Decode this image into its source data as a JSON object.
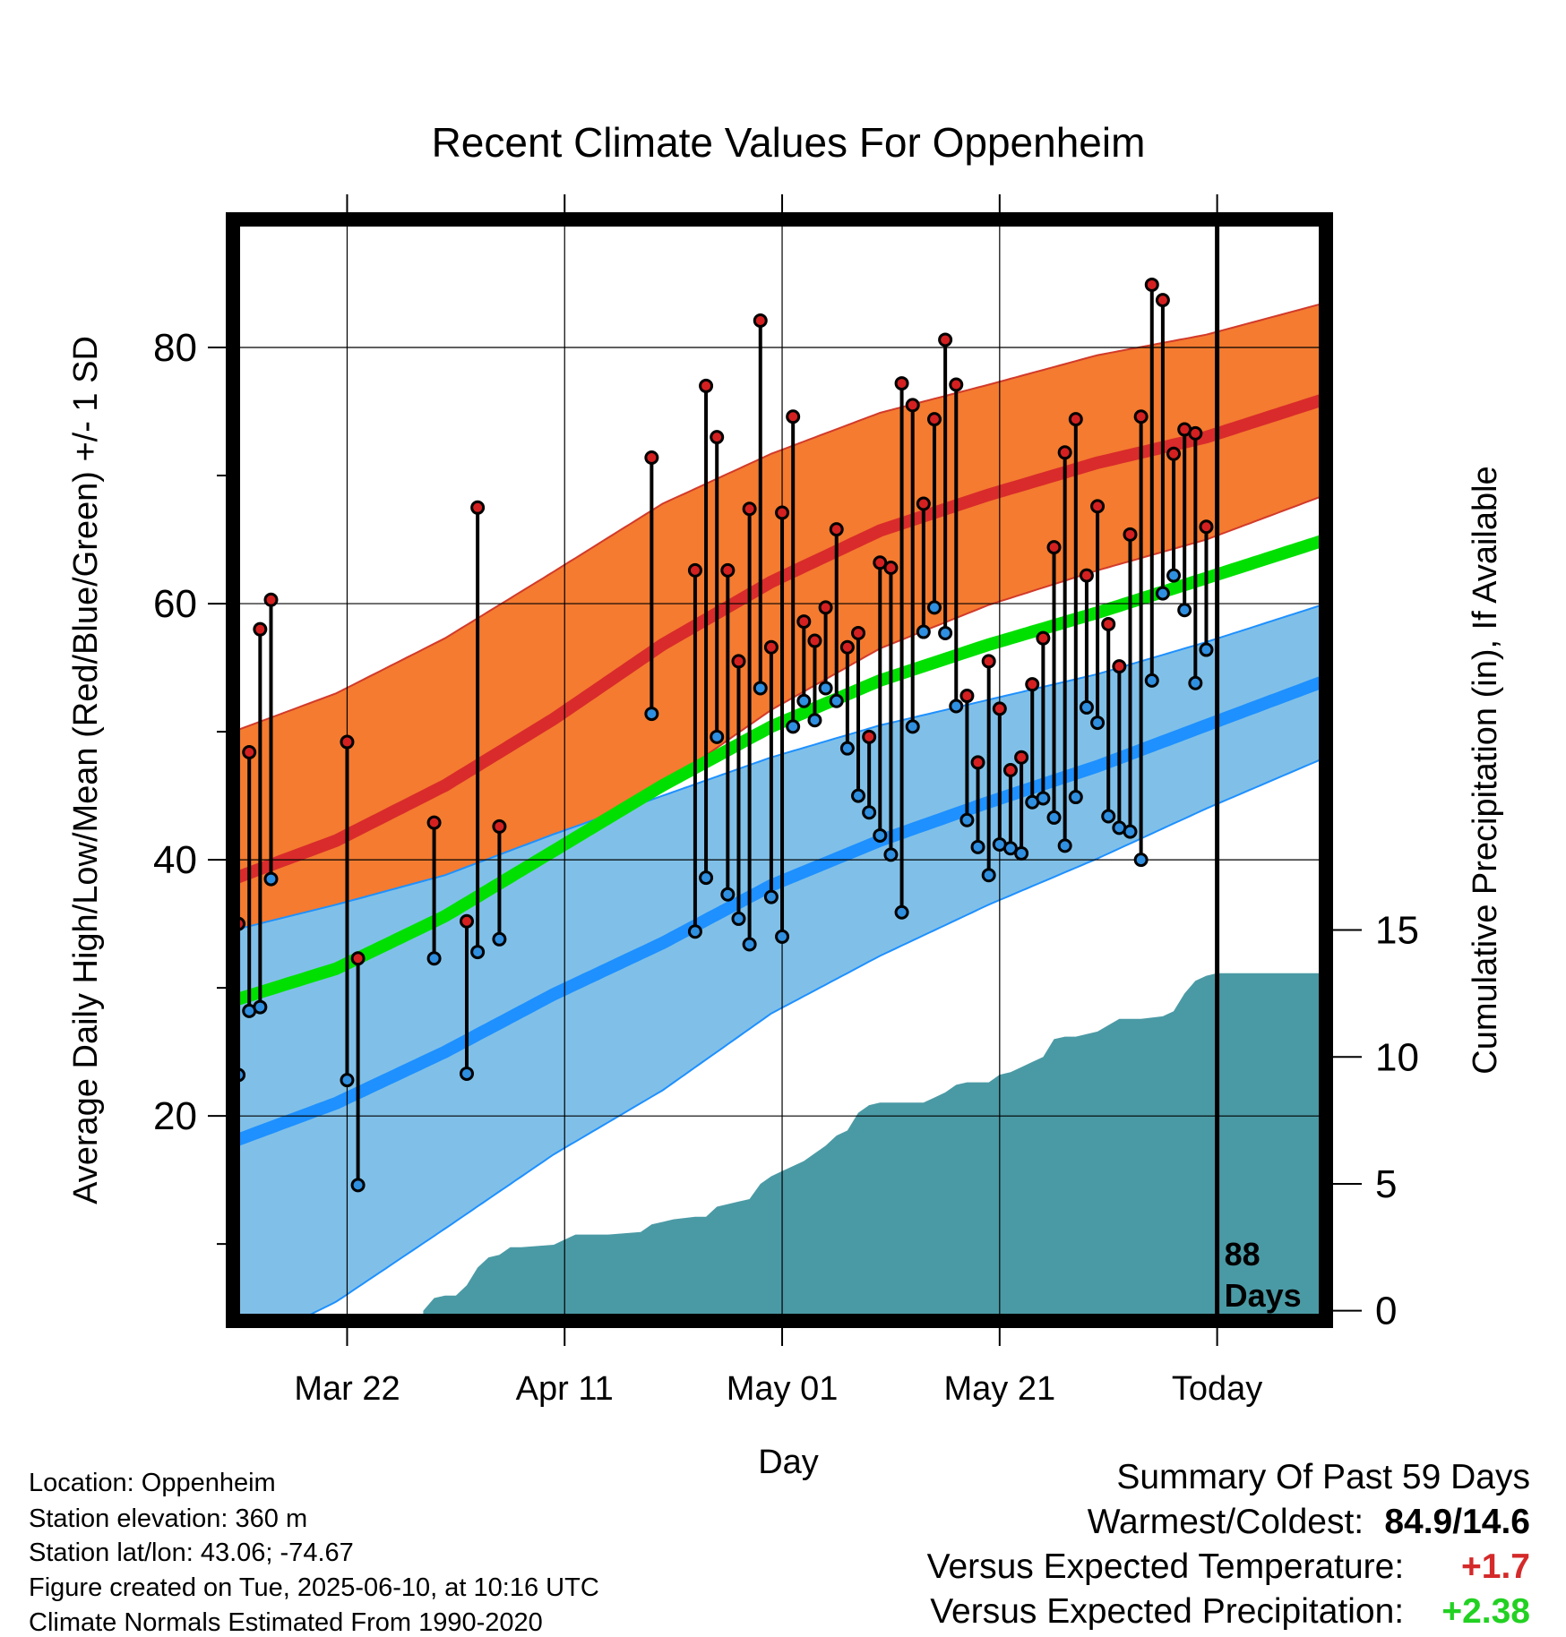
{
  "chart_data": {
    "type": "line",
    "title": "Recent Climate Values For Oppenheim",
    "xlabel": "Day",
    "ylabel": "Average Daily High/Low/Mean (Red/Blue/Green) +/- 1 SD",
    "y2label": "Cumulative Precipitation (in), If Available",
    "ylim": [
      4,
      90
    ],
    "y2lim": [
      -0.4,
      43
    ],
    "y_ticks": [
      20,
      40,
      60,
      80
    ],
    "y_tick_labels": [
      "20",
      "40",
      "60",
      "80"
    ],
    "y2_ticks": [
      0,
      5,
      10,
      15
    ],
    "y2_tick_labels": [
      "0",
      "5",
      "10",
      "15"
    ],
    "x_day_range": [
      0.5,
      101
    ],
    "x_ticks": [
      11,
      31,
      51,
      71,
      91
    ],
    "x_tick_labels": [
      "Mar 22",
      "Apr 11",
      "May 01",
      "May 21",
      "Today"
    ],
    "today_day": 91,
    "today_label": [
      "88",
      "Days"
    ],
    "grid": true,
    "colors": {
      "high_band": "#f47b30",
      "high_mean": "#d92b2b",
      "low_band": "#80c0e8",
      "low_mean": "#1e90ff",
      "mean": "#00e000",
      "precip": "#4a9aa5",
      "high_marker": "#d42020",
      "low_marker": "#2f8fe0"
    },
    "normal_days": [
      0.5,
      10,
      20,
      30,
      40,
      50,
      60,
      70,
      80,
      90,
      101
    ],
    "normal_high": [
      38.5,
      41.5,
      45.8,
      51,
      56.8,
      61.7,
      65.7,
      68.5,
      71,
      73,
      76
    ],
    "normal_high_sd": [
      11.5,
      11.5,
      11.5,
      11.5,
      11,
      10,
      9.2,
      8.6,
      8.4,
      8,
      7.5
    ],
    "normal_low": [
      18,
      21,
      25,
      29.5,
      33.5,
      38,
      41.5,
      44.5,
      47.3,
      50.5,
      54
    ],
    "normal_low_sd": [
      16.5,
      15.5,
      13.8,
      12.5,
      11.5,
      10,
      9,
      8,
      7.2,
      6.5,
      6
    ],
    "normal_mean": [
      29,
      31.5,
      35.6,
      40.7,
      45.8,
      50.4,
      54,
      56.8,
      59.3,
      62,
      65
    ],
    "observed": [
      {
        "day": 1,
        "high": 35.0,
        "low": 23.2
      },
      {
        "day": 2,
        "high": 48.4,
        "low": 28.2
      },
      {
        "day": 3,
        "high": 58.0,
        "low": 28.5
      },
      {
        "day": 4,
        "high": 60.3,
        "low": 38.5
      },
      {
        "day": 11,
        "high": 49.2,
        "low": 22.8
      },
      {
        "day": 12,
        "high": 32.3,
        "low": 14.6
      },
      {
        "day": 19,
        "high": 42.9,
        "low": 32.3
      },
      {
        "day": 22,
        "high": 35.2,
        "low": 23.3
      },
      {
        "day": 23,
        "high": 67.5,
        "low": 32.8
      },
      {
        "day": 25,
        "high": 42.6,
        "low": 33.8
      },
      {
        "day": 39,
        "high": 71.4,
        "low": 51.4
      },
      {
        "day": 43,
        "high": 62.6,
        "low": 34.4
      },
      {
        "day": 44,
        "high": 77.0,
        "low": 38.6
      },
      {
        "day": 45,
        "high": 73.0,
        "low": 49.6
      },
      {
        "day": 46,
        "high": 62.6,
        "low": 37.3
      },
      {
        "day": 47,
        "high": 55.5,
        "low": 35.4
      },
      {
        "day": 48,
        "high": 67.4,
        "low": 33.4
      },
      {
        "day": 49,
        "high": 82.1,
        "low": 53.4
      },
      {
        "day": 50,
        "high": 56.6,
        "low": 37.1
      },
      {
        "day": 51,
        "high": 67.1,
        "low": 34.0
      },
      {
        "day": 52,
        "high": 74.6,
        "low": 50.4
      },
      {
        "day": 53,
        "high": 58.6,
        "low": 52.4
      },
      {
        "day": 54,
        "high": 57.1,
        "low": 50.9
      },
      {
        "day": 55,
        "high": 59.7,
        "low": 53.4
      },
      {
        "day": 56,
        "high": 65.8,
        "low": 52.4
      },
      {
        "day": 57,
        "high": 56.6,
        "low": 48.7
      },
      {
        "day": 58,
        "high": 57.7,
        "low": 45.0
      },
      {
        "day": 59,
        "high": 49.6,
        "low": 43.7
      },
      {
        "day": 60,
        "high": 63.2,
        "low": 41.9
      },
      {
        "day": 61,
        "high": 62.8,
        "low": 40.4
      },
      {
        "day": 62,
        "high": 77.2,
        "low": 35.9
      },
      {
        "day": 63,
        "high": 75.5,
        "low": 50.4
      },
      {
        "day": 64,
        "high": 67.8,
        "low": 57.8
      },
      {
        "day": 65,
        "high": 74.4,
        "low": 59.7
      },
      {
        "day": 66,
        "high": 80.6,
        "low": 57.7
      },
      {
        "day": 67,
        "high": 77.1,
        "low": 52.0
      },
      {
        "day": 68,
        "high": 52.8,
        "low": 43.1
      },
      {
        "day": 69,
        "high": 47.6,
        "low": 41.0
      },
      {
        "day": 70,
        "high": 55.5,
        "low": 38.8
      },
      {
        "day": 71,
        "high": 51.8,
        "low": 41.2
      },
      {
        "day": 72,
        "high": 47.0,
        "low": 40.9
      },
      {
        "day": 73,
        "high": 48.0,
        "low": 40.5
      },
      {
        "day": 74,
        "high": 53.7,
        "low": 44.5
      },
      {
        "day": 75,
        "high": 57.3,
        "low": 44.8
      },
      {
        "day": 76,
        "high": 64.4,
        "low": 43.3
      },
      {
        "day": 77,
        "high": 71.8,
        "low": 41.1
      },
      {
        "day": 78,
        "high": 74.4,
        "low": 44.9
      },
      {
        "day": 79,
        "high": 62.2,
        "low": 51.9
      },
      {
        "day": 80,
        "high": 67.6,
        "low": 50.7
      },
      {
        "day": 81,
        "high": 58.4,
        "low": 43.4
      },
      {
        "day": 82,
        "high": 55.1,
        "low": 42.5
      },
      {
        "day": 83,
        "high": 65.4,
        "low": 42.2
      },
      {
        "day": 84,
        "high": 74.6,
        "low": 40.0
      },
      {
        "day": 85,
        "high": 84.9,
        "low": 54.0
      },
      {
        "day": 86,
        "high": 83.7,
        "low": 60.8
      },
      {
        "day": 87,
        "high": 71.7,
        "low": 62.2
      },
      {
        "day": 88,
        "high": 73.6,
        "low": 59.5
      },
      {
        "day": 89,
        "high": 73.3,
        "low": 53.8
      },
      {
        "day": 90,
        "high": 66.0,
        "low": 56.4
      }
    ],
    "precip_cumulative": {
      "day": [
        18,
        19,
        20,
        21,
        22,
        23,
        24,
        25,
        26,
        27,
        30,
        31,
        32,
        35,
        38,
        39,
        40,
        41,
        43,
        44,
        45,
        47,
        48,
        49,
        50,
        51,
        52,
        53,
        54,
        55,
        56,
        57,
        58,
        59,
        60,
        64,
        65,
        66,
        67,
        68,
        70,
        71,
        72,
        73,
        74,
        75,
        76,
        77,
        78,
        79,
        80,
        82,
        84,
        86,
        87,
        88,
        89,
        90,
        91,
        101
      ],
      "value": [
        0,
        0.5,
        0.6,
        0.6,
        1.0,
        1.7,
        2.1,
        2.2,
        2.5,
        2.5,
        2.6,
        2.8,
        3.0,
        3.0,
        3.1,
        3.4,
        3.5,
        3.6,
        3.7,
        3.7,
        4.1,
        4.3,
        4.4,
        5.0,
        5.3,
        5.5,
        5.7,
        5.9,
        6.2,
        6.5,
        6.9,
        7.1,
        7.8,
        8.1,
        8.2,
        8.2,
        8.4,
        8.6,
        8.9,
        9.0,
        9.0,
        9.3,
        9.4,
        9.6,
        9.8,
        10.0,
        10.7,
        10.8,
        10.8,
        10.9,
        11.0,
        11.5,
        11.5,
        11.6,
        11.8,
        12.5,
        13.0,
        13.2,
        13.3,
        13.3
      ]
    }
  },
  "info": {
    "location": "Location: Oppenheim",
    "elevation": "Station elevation: 360 m",
    "latlon": "Station lat/lon: 43.06; -74.67",
    "created": "Figure created on Tue, 2025-06-10, at 10:16 UTC",
    "normals": "Climate Normals Estimated From 1990-2020"
  },
  "summary": {
    "heading": "Summary Of Past 59 Days",
    "warm_cold_label": "Warmest/Coldest:",
    "warm_cold_value": "84.9/14.6",
    "temp_label": "Versus Expected Temperature:",
    "temp_value": "+1.7",
    "temp_color": "#d42a2a",
    "precip_label": "Versus Expected Precipitation:",
    "precip_value": "+2.38",
    "precip_color": "#22d122"
  }
}
